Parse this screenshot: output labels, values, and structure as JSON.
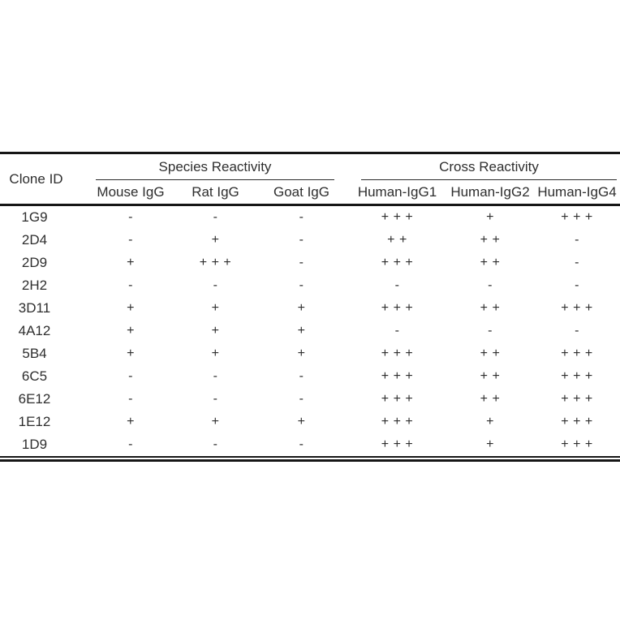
{
  "table": {
    "corner_header": "Clone ID",
    "column_groups": [
      {
        "label": "Species Reactivity",
        "columns": [
          "Mouse IgG",
          "Rat IgG",
          "Goat IgG"
        ]
      },
      {
        "label": "Cross Reactivity",
        "columns": [
          "Human-IgG1",
          "Human-IgG2",
          "Human-IgG4"
        ]
      }
    ],
    "rows": [
      {
        "clone_id": "1G9",
        "values": [
          "-",
          "-",
          "-",
          "+ + +",
          "+",
          "+ + +"
        ]
      },
      {
        "clone_id": "2D4",
        "values": [
          "-",
          "+",
          "-",
          "+ +",
          "+ +",
          "-"
        ]
      },
      {
        "clone_id": "2D9",
        "values": [
          "+",
          "+ + +",
          "-",
          "+ + +",
          "+ +",
          "-"
        ]
      },
      {
        "clone_id": "2H2",
        "values": [
          "-",
          "-",
          "-",
          "-",
          "-",
          "-"
        ]
      },
      {
        "clone_id": "3D11",
        "values": [
          "+",
          "+",
          "+",
          "+ + +",
          "+ +",
          "+ + +"
        ]
      },
      {
        "clone_id": "4A12",
        "values": [
          "+",
          "+",
          "+",
          "-",
          "-",
          "-"
        ]
      },
      {
        "clone_id": "5B4",
        "values": [
          "+",
          "+",
          "+",
          "+ + +",
          "+ +",
          "+ + +"
        ]
      },
      {
        "clone_id": "6C5",
        "values": [
          "-",
          "-",
          "-",
          "+ + +",
          "+ +",
          "+ + +"
        ]
      },
      {
        "clone_id": "6E12",
        "values": [
          "-",
          "-",
          "-",
          "+ + +",
          "+ +",
          "+ + +"
        ]
      },
      {
        "clone_id": "1E12",
        "values": [
          "+",
          "+",
          "+",
          "+ + +",
          "+",
          "+ + +"
        ]
      },
      {
        "clone_id": "1D9",
        "values": [
          "-",
          "-",
          "-",
          "+ + +",
          "+",
          "+ + +"
        ]
      }
    ],
    "colors": {
      "text": "#2e2e2e",
      "rule": "#161616",
      "background": "#ffffff"
    }
  }
}
